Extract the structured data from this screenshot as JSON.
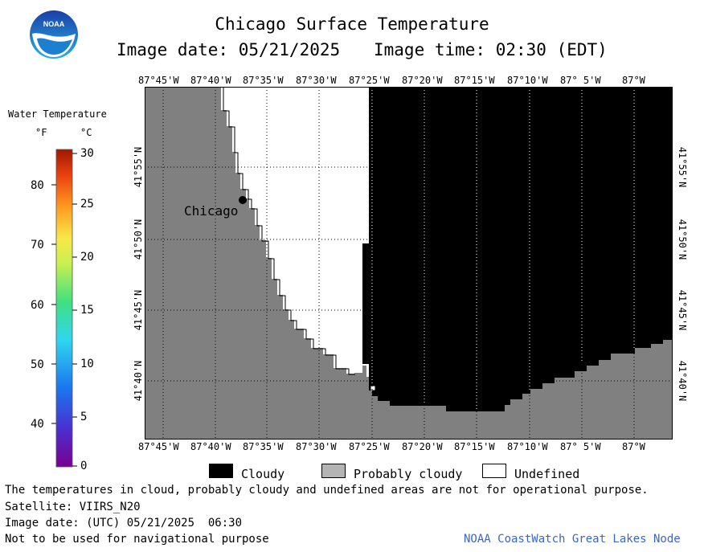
{
  "header": {
    "title": "Chicago Surface Temperature",
    "image_date": "Image date: 05/21/2025",
    "image_time": "Image time: 02:30 (EDT)"
  },
  "logo": {
    "text": "NOAA"
  },
  "colorbar": {
    "title": "Water Temperature",
    "unit_f": "°F",
    "unit_c": "°C",
    "f_ticks": [
      "80",
      "70",
      "60",
      "50",
      "40"
    ],
    "c_ticks": [
      "30",
      "25",
      "20",
      "15",
      "10",
      "5",
      "0"
    ]
  },
  "map": {
    "lon_labels": [
      "87°45'W",
      "87°40'W",
      "87°35'W",
      "87°30'W",
      "87°25'W",
      "87°20'W",
      "87°15'W",
      "87°10'W",
      "87° 5'W",
      "87°W"
    ],
    "lat_labels": [
      "41°55'N",
      "41°50'N",
      "41°45'N",
      "41°40'N"
    ],
    "city_label": "Chicago",
    "colors": {
      "land": "#808080",
      "cloudy": "#000000",
      "undefined": "#ffffff",
      "probably_cloudy": "#b4b4b4"
    }
  },
  "legend": {
    "cloudy": "Cloudy",
    "probably_cloudy": "Probably cloudy",
    "undefined": "Undefined"
  },
  "footer": {
    "disclaimer": "The temperatures in cloud, probably cloudy and undefined areas are not for operational purpose.",
    "satellite": "Satellite: VIIRS_N20",
    "utc_date": "Image date: (UTC) 05/21/2025  06:30",
    "nav_warning": "Not to be used for navigational purpose",
    "credit": "NOAA CoastWatch Great Lakes Node"
  }
}
